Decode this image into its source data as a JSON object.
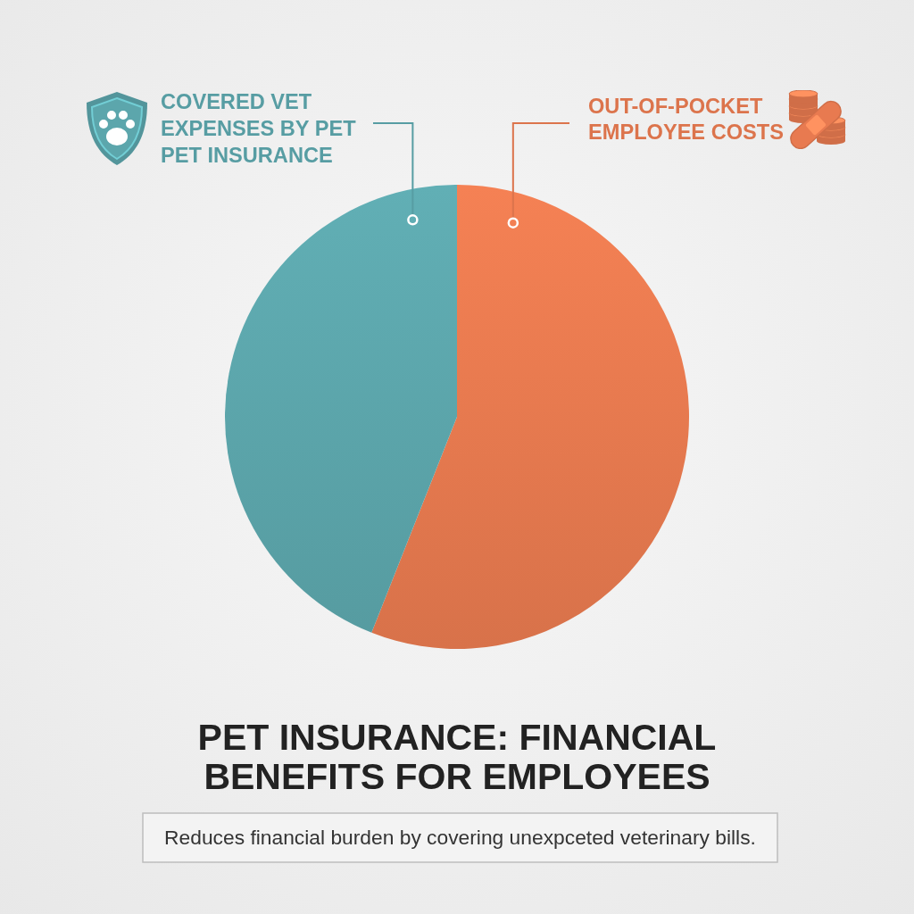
{
  "chart_data": {
    "type": "pie",
    "title": "PET INSURANCE: FINANCIAL BENEFITS FOR EMPLOYEES",
    "subtitle": "Reduces financial burden by covering unexpceted veterinary bills.",
    "categories": [
      "OUT-OF-POCKET EMPLOYEE COSTS",
      "COVERED VET EXPENSES BY PET PET INSURANCE"
    ],
    "values": [
      56,
      44
    ],
    "colors": [
      "#e87a50",
      "#5ca6ac"
    ]
  }
}
